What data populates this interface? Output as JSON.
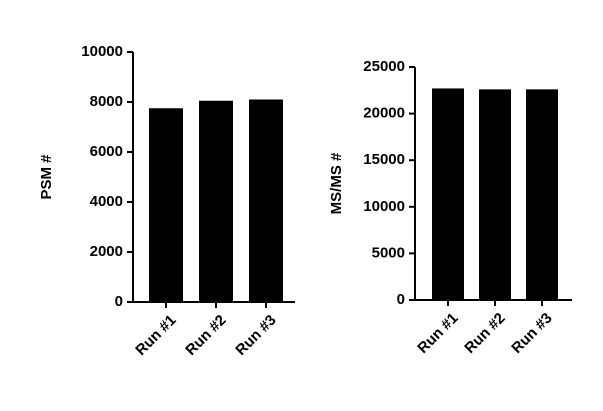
{
  "chart_data": [
    {
      "type": "bar",
      "y_label": "PSM #",
      "categories": [
        "Run #1",
        "Run #2",
        "Run #3"
      ],
      "values": [
        7750,
        8050,
        8100
      ],
      "color": "#000000",
      "ylim": [
        0,
        10000
      ],
      "yticks": [
        0,
        2000,
        4000,
        6000,
        8000,
        10000
      ]
    },
    {
      "type": "bar",
      "y_label": "MS/MS #",
      "categories": [
        "Run #1",
        "Run #2",
        "Run #3"
      ],
      "values": [
        22700,
        22600,
        22600
      ],
      "color": "#000000",
      "ylim": [
        0,
        25000
      ],
      "yticks": [
        0,
        5000,
        10000,
        15000,
        20000,
        25000
      ]
    }
  ]
}
